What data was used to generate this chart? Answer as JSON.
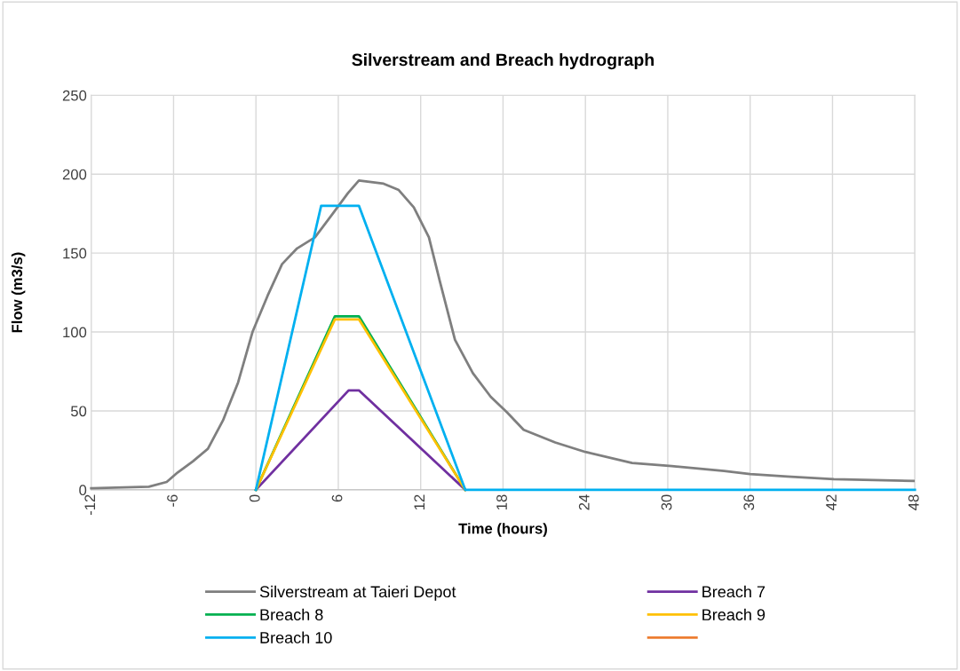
{
  "chart_data": {
    "type": "line",
    "title": "Silverstream and Breach hydrograph",
    "xlabel": "Time (hours)",
    "ylabel": "Flow (m3/s)",
    "xlim": [
      -12,
      48
    ],
    "xticks": [
      -12,
      -6,
      0,
      6,
      12,
      18,
      24,
      30,
      36,
      42,
      48
    ],
    "ylim": [
      0,
      250
    ],
    "yticks": [
      0,
      50,
      100,
      150,
      200,
      250
    ],
    "grid": true,
    "legend": "bottom",
    "line_style": "solid",
    "marker": "none",
    "series": [
      {
        "name": "Silverstream at Taieri Depot",
        "color": "#7f7f7f",
        "x": [
          -12,
          -7.8,
          -6.5,
          -5.7,
          -4.6,
          -3.5,
          -2.4,
          -1.3,
          -0.25,
          0.85,
          1.9,
          3,
          4.3,
          5.6,
          6.7,
          7.5,
          9.3,
          10.4,
          11.5,
          12.6,
          13.4,
          14.5,
          15.8,
          17.1,
          18.3,
          19.5,
          21.8,
          24,
          27.4,
          30.3,
          34.1,
          36,
          38.7,
          42.1,
          47.9
        ],
        "values": [
          1,
          2,
          5,
          11,
          18,
          26,
          44,
          68,
          100,
          123,
          143,
          153,
          160,
          175,
          188,
          196,
          194,
          190,
          179,
          160,
          132,
          95,
          74,
          59,
          49,
          38,
          30,
          24,
          17,
          15,
          12,
          10,
          8.5,
          6.7,
          5.6
        ]
      },
      {
        "name": "Breach 7",
        "color": "#7030a0",
        "x": [
          0,
          6.75,
          7.5,
          15.25
        ],
        "values": [
          0,
          63,
          63,
          0
        ]
      },
      {
        "name": "Breach 8",
        "color": "#00b050",
        "x": [
          0,
          5.75,
          7.5,
          15.25
        ],
        "values": [
          0,
          110,
          110,
          0
        ]
      },
      {
        "name": "Breach 9",
        "color": "#ffc000",
        "x": [
          0,
          5.75,
          7.5,
          15.25
        ],
        "values": [
          0,
          108,
          108,
          0
        ]
      },
      {
        "name": "Breach 10",
        "color": "#00b0f0",
        "x": [
          0,
          4.75,
          7.5,
          15.25,
          48
        ],
        "values": [
          0,
          180,
          180,
          0,
          0
        ]
      },
      {
        "color": "#ed7d31"
      }
    ]
  }
}
